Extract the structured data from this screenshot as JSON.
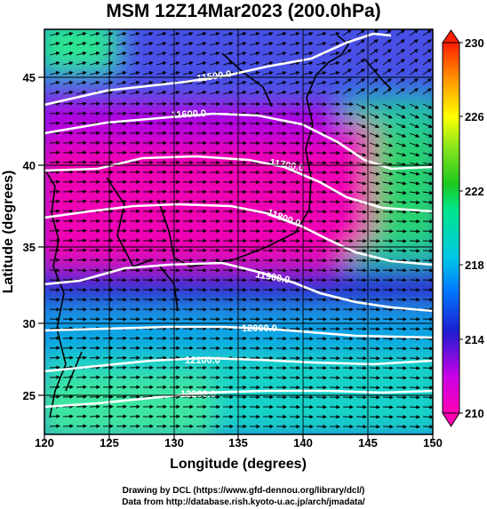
{
  "title": "MSM 12Z14Mar2023 (200.0hPa)",
  "x_axis": {
    "label": "Longitude (degrees)",
    "ticks": [
      "120",
      "125",
      "130",
      "135",
      "140",
      "145",
      "150"
    ]
  },
  "y_axis": {
    "label": "Latitude  (degrees)",
    "ticks": [
      "45",
      "40",
      "35",
      "30",
      "25"
    ]
  },
  "colorbar": {
    "ticks": [
      "230",
      "226",
      "222",
      "218",
      "214",
      "210"
    ],
    "range": [
      210,
      230
    ],
    "colors": [
      "#ff00a8",
      "#c800e6",
      "#2a2ad2",
      "#00b4e6",
      "#00e6a0",
      "#28c828",
      "#b4e61e",
      "#ffff00",
      "#ff9600",
      "#ff3c00"
    ]
  },
  "contours": [
    {
      "label": "11500.0"
    },
    {
      "label": "11600.0"
    },
    {
      "label": "11700.0"
    },
    {
      "label": "11800.0"
    },
    {
      "label": "11900.0"
    },
    {
      "label": "12000.0"
    },
    {
      "label": "12100.0"
    },
    {
      "label": "12200.0"
    }
  ],
  "credits": {
    "line1": "Drawing by DCL (https://www.gfd-dennou.org/library/dcl/)",
    "line2": "Data from http://database.rish.kyoto-u.ac.jp/arch/jmadata/"
  }
}
